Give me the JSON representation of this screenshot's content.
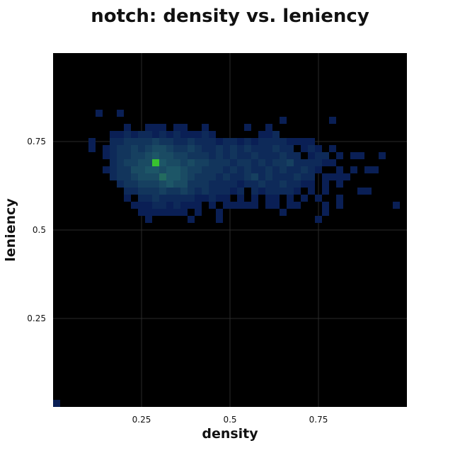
{
  "chart_data": {
    "type": "heatmap",
    "title": "notch: density vs. leniency",
    "xlabel": "density",
    "ylabel": "leniency",
    "xlim": [
      0,
      1
    ],
    "ylim": [
      0,
      1
    ],
    "bin_size": 0.02,
    "x_ticks": [
      {
        "value": 0.25,
        "label": "0.25"
      },
      {
        "value": 0.5,
        "label": "0.5"
      },
      {
        "value": 0.75,
        "label": "0.75"
      }
    ],
    "y_ticks": [
      {
        "value": 0.25,
        "label": "0.25"
      },
      {
        "value": 0.5,
        "label": "0.5"
      },
      {
        "value": 0.75,
        "label": "0.75"
      }
    ],
    "grid": true,
    "background": "#000000",
    "colors": {
      "low": "#0a1f55",
      "mid": "#1f5a68",
      "high": "#39c230"
    },
    "cells": [
      [
        0.0,
        0.0,
        1
      ],
      [
        0.12,
        0.82,
        1
      ],
      [
        0.18,
        0.82,
        1
      ],
      [
        0.64,
        0.8,
        1
      ],
      [
        0.78,
        0.8,
        1
      ],
      [
        0.2,
        0.78,
        1
      ],
      [
        0.26,
        0.78,
        1
      ],
      [
        0.28,
        0.78,
        1
      ],
      [
        0.3,
        0.78,
        1
      ],
      [
        0.34,
        0.78,
        1
      ],
      [
        0.36,
        0.78,
        1
      ],
      [
        0.42,
        0.78,
        1
      ],
      [
        0.54,
        0.78,
        1
      ],
      [
        0.6,
        0.78,
        1
      ],
      [
        0.16,
        0.76,
        1
      ],
      [
        0.18,
        0.76,
        1
      ],
      [
        0.2,
        0.76,
        2
      ],
      [
        0.22,
        0.76,
        1
      ],
      [
        0.24,
        0.76,
        2
      ],
      [
        0.26,
        0.76,
        2
      ],
      [
        0.28,
        0.76,
        1
      ],
      [
        0.3,
        0.76,
        2
      ],
      [
        0.32,
        0.76,
        1
      ],
      [
        0.34,
        0.76,
        2
      ],
      [
        0.36,
        0.76,
        1
      ],
      [
        0.38,
        0.76,
        1
      ],
      [
        0.4,
        0.76,
        1
      ],
      [
        0.42,
        0.76,
        2
      ],
      [
        0.44,
        0.76,
        1
      ],
      [
        0.58,
        0.76,
        1
      ],
      [
        0.6,
        0.76,
        1
      ],
      [
        0.62,
        0.76,
        2
      ],
      [
        0.1,
        0.74,
        1
      ],
      [
        0.16,
        0.74,
        2
      ],
      [
        0.18,
        0.74,
        2
      ],
      [
        0.2,
        0.74,
        3
      ],
      [
        0.22,
        0.74,
        3
      ],
      [
        0.24,
        0.74,
        3
      ],
      [
        0.26,
        0.74,
        3
      ],
      [
        0.28,
        0.74,
        4
      ],
      [
        0.3,
        0.74,
        3
      ],
      [
        0.32,
        0.74,
        3
      ],
      [
        0.34,
        0.74,
        2
      ],
      [
        0.36,
        0.74,
        2
      ],
      [
        0.38,
        0.74,
        3
      ],
      [
        0.4,
        0.74,
        2
      ],
      [
        0.42,
        0.74,
        2
      ],
      [
        0.44,
        0.74,
        2
      ],
      [
        0.46,
        0.74,
        1
      ],
      [
        0.48,
        0.74,
        2
      ],
      [
        0.5,
        0.74,
        2
      ],
      [
        0.52,
        0.74,
        1
      ],
      [
        0.54,
        0.74,
        2
      ],
      [
        0.56,
        0.74,
        1
      ],
      [
        0.58,
        0.74,
        2
      ],
      [
        0.6,
        0.74,
        2
      ],
      [
        0.62,
        0.74,
        2
      ],
      [
        0.64,
        0.74,
        2
      ],
      [
        0.66,
        0.74,
        1
      ],
      [
        0.68,
        0.74,
        1
      ],
      [
        0.7,
        0.74,
        1
      ],
      [
        0.72,
        0.74,
        1
      ],
      [
        0.1,
        0.72,
        1
      ],
      [
        0.14,
        0.72,
        1
      ],
      [
        0.16,
        0.72,
        2
      ],
      [
        0.18,
        0.72,
        3
      ],
      [
        0.2,
        0.72,
        3
      ],
      [
        0.22,
        0.72,
        4
      ],
      [
        0.24,
        0.72,
        3
      ],
      [
        0.26,
        0.72,
        4
      ],
      [
        0.28,
        0.72,
        5
      ],
      [
        0.3,
        0.72,
        5
      ],
      [
        0.32,
        0.72,
        4
      ],
      [
        0.34,
        0.72,
        3
      ],
      [
        0.36,
        0.72,
        3
      ],
      [
        0.38,
        0.72,
        4
      ],
      [
        0.4,
        0.72,
        3
      ],
      [
        0.42,
        0.72,
        2
      ],
      [
        0.44,
        0.72,
        2
      ],
      [
        0.46,
        0.72,
        3
      ],
      [
        0.48,
        0.72,
        2
      ],
      [
        0.5,
        0.72,
        3
      ],
      [
        0.52,
        0.72,
        2
      ],
      [
        0.54,
        0.72,
        3
      ],
      [
        0.56,
        0.72,
        2
      ],
      [
        0.58,
        0.72,
        2
      ],
      [
        0.6,
        0.72,
        2
      ],
      [
        0.62,
        0.72,
        3
      ],
      [
        0.64,
        0.72,
        2
      ],
      [
        0.66,
        0.72,
        2
      ],
      [
        0.7,
        0.72,
        1
      ],
      [
        0.72,
        0.72,
        2
      ],
      [
        0.74,
        0.72,
        1
      ],
      [
        0.78,
        0.72,
        1
      ],
      [
        0.14,
        0.7,
        1
      ],
      [
        0.16,
        0.7,
        2
      ],
      [
        0.18,
        0.7,
        3
      ],
      [
        0.2,
        0.7,
        3
      ],
      [
        0.22,
        0.7,
        4
      ],
      [
        0.24,
        0.7,
        4
      ],
      [
        0.26,
        0.7,
        5
      ],
      [
        0.28,
        0.7,
        6
      ],
      [
        0.3,
        0.7,
        5
      ],
      [
        0.32,
        0.7,
        5
      ],
      [
        0.34,
        0.7,
        4
      ],
      [
        0.36,
        0.7,
        4
      ],
      [
        0.38,
        0.7,
        3
      ],
      [
        0.4,
        0.7,
        3
      ],
      [
        0.42,
        0.7,
        3
      ],
      [
        0.44,
        0.7,
        2
      ],
      [
        0.46,
        0.7,
        3
      ],
      [
        0.48,
        0.7,
        2
      ],
      [
        0.5,
        0.7,
        3
      ],
      [
        0.52,
        0.7,
        2
      ],
      [
        0.54,
        0.7,
        2
      ],
      [
        0.56,
        0.7,
        3
      ],
      [
        0.58,
        0.7,
        2
      ],
      [
        0.6,
        0.7,
        2
      ],
      [
        0.62,
        0.7,
        2
      ],
      [
        0.64,
        0.7,
        3
      ],
      [
        0.66,
        0.7,
        2
      ],
      [
        0.68,
        0.7,
        2
      ],
      [
        0.72,
        0.7,
        1
      ],
      [
        0.74,
        0.7,
        2
      ],
      [
        0.76,
        0.7,
        2
      ],
      [
        0.8,
        0.7,
        1
      ],
      [
        0.84,
        0.7,
        1
      ],
      [
        0.86,
        0.7,
        1
      ],
      [
        0.92,
        0.7,
        1
      ],
      [
        0.16,
        0.68,
        2
      ],
      [
        0.18,
        0.68,
        3
      ],
      [
        0.2,
        0.68,
        4
      ],
      [
        0.22,
        0.68,
        4
      ],
      [
        0.24,
        0.68,
        5
      ],
      [
        0.26,
        0.68,
        5
      ],
      [
        0.28,
        0.68,
        10
      ],
      [
        0.3,
        0.68,
        6
      ],
      [
        0.32,
        0.68,
        5
      ],
      [
        0.34,
        0.68,
        5
      ],
      [
        0.36,
        0.68,
        4
      ],
      [
        0.38,
        0.68,
        5
      ],
      [
        0.4,
        0.68,
        4
      ],
      [
        0.42,
        0.68,
        4
      ],
      [
        0.44,
        0.68,
        3
      ],
      [
        0.46,
        0.68,
        3
      ],
      [
        0.48,
        0.68,
        3
      ],
      [
        0.5,
        0.68,
        2
      ],
      [
        0.52,
        0.68,
        3
      ],
      [
        0.54,
        0.68,
        3
      ],
      [
        0.56,
        0.68,
        2
      ],
      [
        0.58,
        0.68,
        3
      ],
      [
        0.6,
        0.68,
        2
      ],
      [
        0.62,
        0.68,
        3
      ],
      [
        0.64,
        0.68,
        3
      ],
      [
        0.66,
        0.68,
        4
      ],
      [
        0.68,
        0.68,
        2
      ],
      [
        0.7,
        0.68,
        2
      ],
      [
        0.72,
        0.68,
        2
      ],
      [
        0.74,
        0.68,
        2
      ],
      [
        0.76,
        0.68,
        1
      ],
      [
        0.78,
        0.68,
        1
      ],
      [
        0.14,
        0.66,
        1
      ],
      [
        0.16,
        0.66,
        2
      ],
      [
        0.18,
        0.66,
        3
      ],
      [
        0.2,
        0.66,
        3
      ],
      [
        0.22,
        0.66,
        5
      ],
      [
        0.24,
        0.66,
        5
      ],
      [
        0.26,
        0.66,
        6
      ],
      [
        0.28,
        0.66,
        6
      ],
      [
        0.3,
        0.66,
        5
      ],
      [
        0.32,
        0.66,
        6
      ],
      [
        0.34,
        0.66,
        6
      ],
      [
        0.36,
        0.66,
        5
      ],
      [
        0.38,
        0.66,
        4
      ],
      [
        0.4,
        0.66,
        4
      ],
      [
        0.42,
        0.66,
        3
      ],
      [
        0.44,
        0.66,
        3
      ],
      [
        0.46,
        0.66,
        3
      ],
      [
        0.48,
        0.66,
        2
      ],
      [
        0.5,
        0.66,
        3
      ],
      [
        0.52,
        0.66,
        2
      ],
      [
        0.54,
        0.66,
        3
      ],
      [
        0.56,
        0.66,
        2
      ],
      [
        0.58,
        0.66,
        2
      ],
      [
        0.6,
        0.66,
        3
      ],
      [
        0.62,
        0.66,
        2
      ],
      [
        0.64,
        0.66,
        3
      ],
      [
        0.66,
        0.66,
        2
      ],
      [
        0.68,
        0.66,
        2
      ],
      [
        0.7,
        0.66,
        3
      ],
      [
        0.72,
        0.66,
        2
      ],
      [
        0.74,
        0.66,
        1
      ],
      [
        0.8,
        0.66,
        1
      ],
      [
        0.84,
        0.66,
        1
      ],
      [
        0.88,
        0.66,
        1
      ],
      [
        0.9,
        0.66,
        1
      ],
      [
        0.16,
        0.64,
        2
      ],
      [
        0.18,
        0.64,
        3
      ],
      [
        0.2,
        0.64,
        3
      ],
      [
        0.22,
        0.64,
        4
      ],
      [
        0.24,
        0.64,
        5
      ],
      [
        0.26,
        0.64,
        5
      ],
      [
        0.28,
        0.64,
        5
      ],
      [
        0.3,
        0.64,
        7
      ],
      [
        0.32,
        0.64,
        6
      ],
      [
        0.34,
        0.64,
        6
      ],
      [
        0.36,
        0.64,
        5
      ],
      [
        0.38,
        0.64,
        4
      ],
      [
        0.4,
        0.64,
        3
      ],
      [
        0.42,
        0.64,
        3
      ],
      [
        0.44,
        0.64,
        3
      ],
      [
        0.46,
        0.64,
        2
      ],
      [
        0.48,
        0.64,
        3
      ],
      [
        0.5,
        0.64,
        2
      ],
      [
        0.52,
        0.64,
        2
      ],
      [
        0.54,
        0.64,
        3
      ],
      [
        0.56,
        0.64,
        4
      ],
      [
        0.58,
        0.64,
        2
      ],
      [
        0.6,
        0.64,
        3
      ],
      [
        0.62,
        0.64,
        2
      ],
      [
        0.64,
        0.64,
        2
      ],
      [
        0.66,
        0.64,
        2
      ],
      [
        0.68,
        0.64,
        3
      ],
      [
        0.7,
        0.64,
        2
      ],
      [
        0.72,
        0.64,
        2
      ],
      [
        0.76,
        0.64,
        1
      ],
      [
        0.78,
        0.64,
        1
      ],
      [
        0.8,
        0.64,
        1
      ],
      [
        0.82,
        0.64,
        1
      ],
      [
        0.18,
        0.62,
        2
      ],
      [
        0.2,
        0.62,
        3
      ],
      [
        0.22,
        0.62,
        3
      ],
      [
        0.24,
        0.62,
        4
      ],
      [
        0.26,
        0.62,
        4
      ],
      [
        0.28,
        0.62,
        4
      ],
      [
        0.3,
        0.62,
        5
      ],
      [
        0.32,
        0.62,
        6
      ],
      [
        0.34,
        0.62,
        5
      ],
      [
        0.36,
        0.62,
        5
      ],
      [
        0.38,
        0.62,
        3
      ],
      [
        0.4,
        0.62,
        3
      ],
      [
        0.42,
        0.62,
        3
      ],
      [
        0.44,
        0.62,
        2
      ],
      [
        0.46,
        0.62,
        2
      ],
      [
        0.48,
        0.62,
        2
      ],
      [
        0.5,
        0.62,
        2
      ],
      [
        0.52,
        0.62,
        1
      ],
      [
        0.54,
        0.62,
        2
      ],
      [
        0.56,
        0.62,
        2
      ],
      [
        0.58,
        0.62,
        3
      ],
      [
        0.6,
        0.62,
        2
      ],
      [
        0.62,
        0.62,
        2
      ],
      [
        0.64,
        0.62,
        3
      ],
      [
        0.66,
        0.62,
        2
      ],
      [
        0.68,
        0.62,
        2
      ],
      [
        0.7,
        0.62,
        1
      ],
      [
        0.72,
        0.62,
        1
      ],
      [
        0.76,
        0.62,
        1
      ],
      [
        0.8,
        0.62,
        1
      ],
      [
        0.2,
        0.6,
        2
      ],
      [
        0.22,
        0.6,
        2
      ],
      [
        0.24,
        0.6,
        3
      ],
      [
        0.26,
        0.6,
        3
      ],
      [
        0.28,
        0.6,
        3
      ],
      [
        0.3,
        0.6,
        4
      ],
      [
        0.32,
        0.6,
        3
      ],
      [
        0.34,
        0.6,
        3
      ],
      [
        0.36,
        0.6,
        4
      ],
      [
        0.38,
        0.6,
        3
      ],
      [
        0.4,
        0.6,
        2
      ],
      [
        0.42,
        0.6,
        3
      ],
      [
        0.44,
        0.6,
        2
      ],
      [
        0.46,
        0.6,
        2
      ],
      [
        0.48,
        0.6,
        2
      ],
      [
        0.5,
        0.6,
        1
      ],
      [
        0.52,
        0.6,
        2
      ],
      [
        0.56,
        0.6,
        2
      ],
      [
        0.58,
        0.6,
        1
      ],
      [
        0.6,
        0.6,
        2
      ],
      [
        0.62,
        0.6,
        2
      ],
      [
        0.64,
        0.6,
        2
      ],
      [
        0.66,
        0.6,
        2
      ],
      [
        0.68,
        0.6,
        1
      ],
      [
        0.72,
        0.6,
        1
      ],
      [
        0.76,
        0.6,
        1
      ],
      [
        0.86,
        0.6,
        1
      ],
      [
        0.88,
        0.6,
        1
      ],
      [
        0.2,
        0.58,
        1
      ],
      [
        0.24,
        0.58,
        2
      ],
      [
        0.26,
        0.58,
        2
      ],
      [
        0.28,
        0.58,
        3
      ],
      [
        0.3,
        0.58,
        2
      ],
      [
        0.32,
        0.58,
        2
      ],
      [
        0.34,
        0.58,
        2
      ],
      [
        0.36,
        0.58,
        2
      ],
      [
        0.38,
        0.58,
        2
      ],
      [
        0.4,
        0.58,
        1
      ],
      [
        0.42,
        0.58,
        1
      ],
      [
        0.44,
        0.58,
        2
      ],
      [
        0.46,
        0.58,
        1
      ],
      [
        0.48,
        0.58,
        1
      ],
      [
        0.52,
        0.58,
        1
      ],
      [
        0.56,
        0.58,
        1
      ],
      [
        0.6,
        0.58,
        1
      ],
      [
        0.62,
        0.58,
        1
      ],
      [
        0.66,
        0.58,
        1
      ],
      [
        0.7,
        0.58,
        1
      ],
      [
        0.74,
        0.58,
        1
      ],
      [
        0.8,
        0.58,
        1
      ],
      [
        0.22,
        0.56,
        1
      ],
      [
        0.24,
        0.56,
        1
      ],
      [
        0.26,
        0.56,
        1
      ],
      [
        0.28,
        0.56,
        2
      ],
      [
        0.3,
        0.56,
        2
      ],
      [
        0.32,
        0.56,
        1
      ],
      [
        0.34,
        0.56,
        2
      ],
      [
        0.36,
        0.56,
        1
      ],
      [
        0.38,
        0.56,
        1
      ],
      [
        0.4,
        0.56,
        1
      ],
      [
        0.44,
        0.56,
        1
      ],
      [
        0.48,
        0.56,
        1
      ],
      [
        0.5,
        0.56,
        1
      ],
      [
        0.52,
        0.56,
        1
      ],
      [
        0.54,
        0.56,
        1
      ],
      [
        0.56,
        0.56,
        1
      ],
      [
        0.6,
        0.56,
        1
      ],
      [
        0.62,
        0.56,
        1
      ],
      [
        0.66,
        0.56,
        1
      ],
      [
        0.68,
        0.56,
        1
      ],
      [
        0.76,
        0.56,
        1
      ],
      [
        0.8,
        0.56,
        1
      ],
      [
        0.96,
        0.56,
        1
      ],
      [
        0.24,
        0.54,
        1
      ],
      [
        0.26,
        0.54,
        1
      ],
      [
        0.28,
        0.54,
        1
      ],
      [
        0.3,
        0.54,
        1
      ],
      [
        0.32,
        0.54,
        1
      ],
      [
        0.34,
        0.54,
        1
      ],
      [
        0.36,
        0.54,
        1
      ],
      [
        0.4,
        0.54,
        1
      ],
      [
        0.46,
        0.54,
        1
      ],
      [
        0.64,
        0.54,
        1
      ],
      [
        0.76,
        0.54,
        1
      ],
      [
        0.26,
        0.52,
        1
      ],
      [
        0.38,
        0.52,
        1
      ],
      [
        0.46,
        0.52,
        1
      ],
      [
        0.74,
        0.52,
        1
      ]
    ]
  }
}
